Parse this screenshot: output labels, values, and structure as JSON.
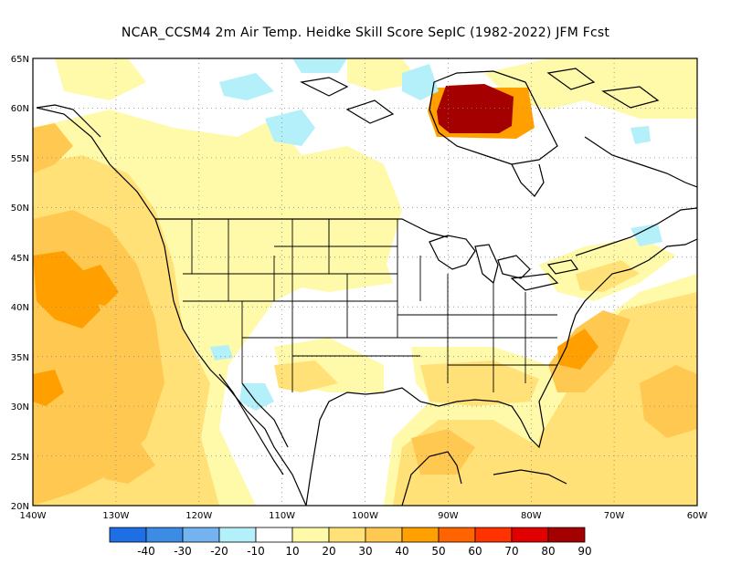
{
  "title": "NCAR_CCSM4  2m Air Temp. Heidke Skill Score SepIC (1982-2022) JFM Fcst",
  "map": {
    "lat_labels": [
      "65N",
      "60N",
      "55N",
      "50N",
      "45N",
      "40N",
      "35N",
      "30N",
      "25N",
      "20N"
    ],
    "lon_labels": [
      "140W",
      "130W",
      "120W",
      "110W",
      "100W",
      "90W",
      "80W",
      "70W",
      "60W"
    ],
    "lat_range": [
      20,
      65
    ],
    "lon_range": [
      -140,
      -60
    ],
    "grid": "dotted"
  },
  "colorbar": {
    "labels": [
      "-40",
      "-30",
      "-20",
      "-10",
      "10",
      "20",
      "30",
      "40",
      "50",
      "60",
      "70",
      "80",
      "90"
    ],
    "colors": [
      "#1e6ee6",
      "#3c8ce6",
      "#73b4f0",
      "#b4f0fa",
      "#ffffff",
      "#fffaaa",
      "#ffe178",
      "#ffc850",
      "#ffa000",
      "#ff6400",
      "#ff3200",
      "#e10000",
      "#a50000"
    ]
  },
  "colors": {
    "c10": "#fffaaa",
    "c20": "#ffe178",
    "c30": "#ffc850",
    "c40": "#ffa000",
    "c80": "#a50000",
    "neg10": "#b4f0fa",
    "coast": "#000000"
  }
}
